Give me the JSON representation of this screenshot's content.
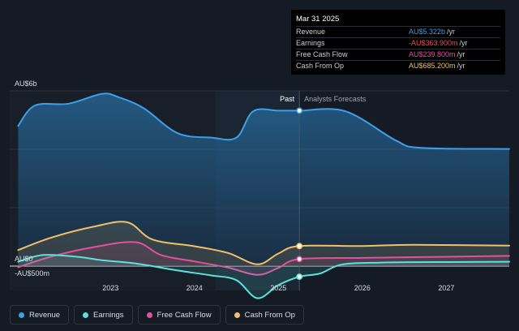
{
  "chart_data": {
    "type": "area",
    "y_axis": {
      "ticks": [
        {
          "value": 6000,
          "label": "AU$6b"
        },
        {
          "value": 0,
          "label": "AU$0"
        },
        {
          "value": -500,
          "label": "-AU$500m"
        }
      ],
      "ylim": [
        -700,
        6000
      ],
      "gridlines": true
    },
    "x_axis": {
      "ticks": [
        {
          "value": 2023.0,
          "label": "2023"
        },
        {
          "value": 2024.0,
          "label": "2024"
        },
        {
          "value": 2025.0,
          "label": "2025"
        },
        {
          "value": 2026.0,
          "label": "2026"
        },
        {
          "value": 2027.0,
          "label": "2027"
        }
      ],
      "xlim": [
        2021.8,
        2027.75
      ]
    },
    "past_label": "Past",
    "forecast_label": "Analysts Forecasts",
    "past_end_x": 2025.25,
    "highlight_band": [
      2024.25,
      2025.25
    ],
    "series": [
      {
        "name": "Revenue",
        "color": "#3d9fe8",
        "points": [
          [
            2021.9,
            4800
          ],
          [
            2022.1,
            5500
          ],
          [
            2022.5,
            5560
          ],
          [
            2022.9,
            5900
          ],
          [
            2023.1,
            5780
          ],
          [
            2023.4,
            5400
          ],
          [
            2023.8,
            4550
          ],
          [
            2024.2,
            4400
          ],
          [
            2024.5,
            4400
          ],
          [
            2024.7,
            5300
          ],
          [
            2025.0,
            5322
          ],
          [
            2025.25,
            5322
          ],
          [
            2025.8,
            5300
          ],
          [
            2026.4,
            4300
          ],
          [
            2026.7,
            4050
          ],
          [
            2027.75,
            4010
          ]
        ]
      },
      {
        "name": "Earnings",
        "color": "#5ce1dc",
        "points": [
          [
            2021.9,
            150
          ],
          [
            2022.2,
            380
          ],
          [
            2022.6,
            320
          ],
          [
            2022.9,
            200
          ],
          [
            2023.3,
            90
          ],
          [
            2023.8,
            -150
          ],
          [
            2024.2,
            -320
          ],
          [
            2024.5,
            -480
          ],
          [
            2024.75,
            -1100
          ],
          [
            2025.0,
            -650
          ],
          [
            2025.25,
            -364
          ],
          [
            2025.5,
            -250
          ],
          [
            2025.75,
            50
          ],
          [
            2026.2,
            120
          ],
          [
            2027.0,
            140
          ],
          [
            2027.75,
            150
          ]
        ]
      },
      {
        "name": "Free Cash Flow",
        "color": "#e0529c",
        "points": [
          [
            2021.9,
            -40
          ],
          [
            2022.3,
            330
          ],
          [
            2022.8,
            650
          ],
          [
            2023.3,
            820
          ],
          [
            2023.6,
            380
          ],
          [
            2024.0,
            160
          ],
          [
            2024.4,
            -50
          ],
          [
            2024.75,
            -300
          ],
          [
            2025.0,
            -60
          ],
          [
            2025.25,
            240
          ],
          [
            2026.0,
            280
          ],
          [
            2027.0,
            320
          ],
          [
            2027.75,
            350
          ]
        ]
      },
      {
        "name": "Cash From Op",
        "color": "#f2c068",
        "points": [
          [
            2021.9,
            550
          ],
          [
            2022.3,
            980
          ],
          [
            2022.8,
            1350
          ],
          [
            2023.2,
            1500
          ],
          [
            2023.5,
            910
          ],
          [
            2024.0,
            680
          ],
          [
            2024.4,
            450
          ],
          [
            2024.75,
            60
          ],
          [
            2025.0,
            430
          ],
          [
            2025.25,
            685
          ],
          [
            2026.0,
            690
          ],
          [
            2026.6,
            730
          ],
          [
            2027.75,
            700
          ]
        ]
      }
    ]
  },
  "tooltip": {
    "title": "Mar 31 2025",
    "rows": [
      {
        "label": "Revenue",
        "value": "AU$5.322b",
        "unit": "/yr",
        "color": "#3d9fe8"
      },
      {
        "label": "Earnings",
        "value": "-AU$363.900m",
        "unit": "/yr",
        "color": "#ef4d5a"
      },
      {
        "label": "Free Cash Flow",
        "value": "AU$239.800m",
        "unit": "/yr",
        "color": "#e0529c"
      },
      {
        "label": "Cash From Op",
        "value": "AU$685.200m",
        "unit": "/yr",
        "color": "#f2c068"
      }
    ]
  },
  "legend": {
    "items": [
      {
        "label": "Revenue",
        "color": "#3d9fe8"
      },
      {
        "label": "Earnings",
        "color": "#5ce1dc"
      },
      {
        "label": "Free Cash Flow",
        "color": "#e0529c"
      },
      {
        "label": "Cash From Op",
        "color": "#f2c068"
      }
    ]
  }
}
